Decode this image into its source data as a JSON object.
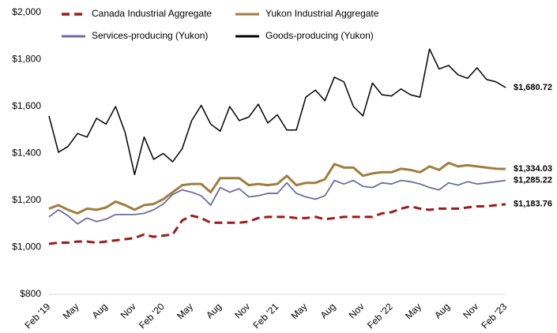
{
  "chart_data": {
    "type": "line",
    "categories": [
      "Feb '19",
      null,
      null,
      "May",
      null,
      null,
      "Aug",
      null,
      null,
      "Nov",
      null,
      null,
      "Feb '20",
      null,
      null,
      "May",
      null,
      null,
      "Aug",
      null,
      null,
      "Nov",
      null,
      null,
      "Feb '21",
      null,
      null,
      "May",
      null,
      null,
      "Aug",
      null,
      null,
      "Nov",
      null,
      null,
      "Feb '22",
      null,
      null,
      "May",
      null,
      null,
      "Aug",
      null,
      null,
      "Nov",
      null,
      null,
      "Feb '23"
    ],
    "series": [
      {
        "name": "Canada Industrial Aggregate",
        "color": "#9b1b1e",
        "dashed": true,
        "values": [
          1015,
          1020,
          1020,
          1025,
          1025,
          1020,
          1025,
          1030,
          1035,
          1040,
          1055,
          1045,
          1050,
          1055,
          1115,
          1135,
          1125,
          1105,
          1105,
          1105,
          1105,
          1110,
          1125,
          1130,
          1130,
          1130,
          1125,
          1125,
          1130,
          1120,
          1125,
          1130,
          1130,
          1130,
          1130,
          1145,
          1150,
          1165,
          1175,
          1165,
          1160,
          1165,
          1165,
          1165,
          1170,
          1175,
          1175,
          1180,
          1183.76
        ],
        "value_labels": [
          null,
          null,
          null,
          null,
          null,
          null,
          null,
          null,
          null,
          null,
          null,
          null,
          null,
          null,
          null,
          null,
          null,
          null,
          null,
          null,
          null,
          null,
          null,
          null,
          null,
          null,
          null,
          null,
          null,
          null,
          null,
          null,
          null,
          null,
          null,
          null,
          null,
          null,
          null,
          null,
          null,
          null,
          null,
          null,
          null,
          null,
          null,
          null,
          "$1,183.76"
        ]
      },
      {
        "name": "Yukon Industrial Aggregate",
        "color": "#9e7e3f",
        "values": [
          1165,
          1180,
          1160,
          1145,
          1165,
          1160,
          1170,
          1195,
          1180,
          1160,
          1180,
          1185,
          1205,
          1235,
          1265,
          1270,
          1270,
          1235,
          1295,
          1295,
          1295,
          1265,
          1270,
          1265,
          1270,
          1305,
          1265,
          1275,
          1275,
          1290,
          1355,
          1340,
          1340,
          1305,
          1315,
          1320,
          1320,
          1335,
          1330,
          1320,
          1345,
          1330,
          1360,
          1345,
          1350,
          1345,
          1340,
          1335,
          1334.03
        ],
        "value_labels": [
          null,
          null,
          null,
          null,
          null,
          null,
          null,
          null,
          null,
          null,
          null,
          null,
          null,
          null,
          null,
          null,
          null,
          null,
          null,
          null,
          null,
          null,
          null,
          null,
          null,
          null,
          null,
          null,
          null,
          null,
          null,
          null,
          null,
          null,
          null,
          null,
          null,
          null,
          null,
          null,
          null,
          null,
          null,
          null,
          null,
          null,
          null,
          null,
          "$1,334.03"
        ]
      },
      {
        "name": "Services-producing (Yukon)",
        "color": "#6b6d9e",
        "values": [
          1130,
          1160,
          1135,
          1100,
          1125,
          1110,
          1120,
          1140,
          1140,
          1140,
          1145,
          1160,
          1185,
          1225,
          1245,
          1235,
          1220,
          1180,
          1255,
          1235,
          1250,
          1215,
          1220,
          1230,
          1230,
          1275,
          1230,
          1215,
          1205,
          1220,
          1285,
          1270,
          1285,
          1260,
          1255,
          1275,
          1270,
          1285,
          1280,
          1270,
          1255,
          1245,
          1275,
          1265,
          1280,
          1270,
          1275,
          1280,
          1285.22
        ],
        "value_labels": [
          null,
          null,
          null,
          null,
          null,
          null,
          null,
          null,
          null,
          null,
          null,
          null,
          null,
          null,
          null,
          null,
          null,
          null,
          null,
          null,
          null,
          null,
          null,
          null,
          null,
          null,
          null,
          null,
          null,
          null,
          null,
          null,
          null,
          null,
          null,
          null,
          null,
          null,
          null,
          null,
          null,
          null,
          null,
          null,
          null,
          null,
          null,
          null,
          "$1,285.22"
        ]
      },
      {
        "name": "Goods-producing (Yukon)",
        "color": "#000000",
        "values": [
          1560,
          1405,
          1430,
          1485,
          1470,
          1550,
          1525,
          1600,
          1490,
          1310,
          1470,
          1375,
          1400,
          1365,
          1420,
          1540,
          1605,
          1525,
          1495,
          1600,
          1540,
          1555,
          1610,
          1530,
          1565,
          1500,
          1500,
          1640,
          1670,
          1625,
          1725,
          1705,
          1600,
          1560,
          1700,
          1650,
          1645,
          1675,
          1650,
          1640,
          1845,
          1760,
          1775,
          1735,
          1720,
          1765,
          1715,
          1705,
          1680.72
        ],
        "value_labels": [
          null,
          null,
          null,
          null,
          null,
          null,
          null,
          null,
          null,
          null,
          null,
          null,
          null,
          null,
          null,
          null,
          null,
          null,
          null,
          null,
          null,
          null,
          null,
          null,
          null,
          null,
          null,
          null,
          null,
          null,
          null,
          null,
          null,
          null,
          null,
          null,
          null,
          null,
          null,
          null,
          null,
          null,
          null,
          null,
          null,
          null,
          null,
          null,
          "$1,680.72"
        ]
      }
    ],
    "ylim": [
      800,
      2000
    ],
    "yticks": [
      {
        "value": 800,
        "label": "$800"
      },
      {
        "value": 1000,
        "label": "$1,000"
      },
      {
        "value": 1200,
        "label": "$1,200"
      },
      {
        "value": 1400,
        "label": "$1,400"
      },
      {
        "value": 1600,
        "label": "$1,600"
      },
      {
        "value": 1800,
        "label": "$1,800"
      },
      {
        "value": 2000,
        "label": "$2,000"
      }
    ],
    "grid": false
  }
}
